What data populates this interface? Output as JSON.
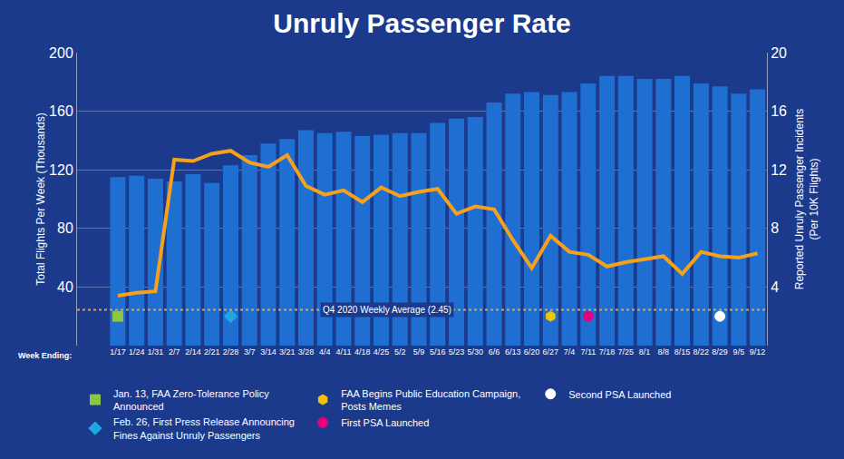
{
  "chart_data": {
    "type": "bar",
    "title": "Unruly Passenger Rate",
    "xlabel": "Week Ending:",
    "categories": [
      "1/17",
      "1/24",
      "1/31",
      "2/7",
      "2/14",
      "2/21",
      "2/28",
      "3/7",
      "3/14",
      "3/21",
      "3/28",
      "4/4",
      "4/11",
      "4/18",
      "4/25",
      "5/2",
      "5/9",
      "5/16",
      "5/23",
      "5/30",
      "6/6",
      "6/13",
      "6/20",
      "6/27",
      "7/4",
      "7/11",
      "7/18",
      "7/25",
      "8/1",
      "8/8",
      "8/15",
      "8/22",
      "8/29",
      "9/5",
      "9/12"
    ],
    "series": [
      {
        "name": "Total Flights Per Week (Thousands)",
        "type": "bar",
        "color": "#1f6fd3",
        "values": [
          115,
          116,
          114,
          112,
          117,
          111,
          123,
          130,
          138,
          141,
          147,
          145,
          146,
          143,
          144,
          145,
          145,
          152,
          155,
          156,
          166,
          172,
          173,
          171,
          173,
          179,
          184,
          184,
          182,
          182,
          184,
          179,
          177,
          172,
          175
        ]
      },
      {
        "name": "Reported Unruly Passenger Incidents (Per 10K Flights)",
        "type": "line",
        "axis": "y2",
        "color": "#f7a11a",
        "line_style": "solid",
        "values": [
          3.4,
          3.6,
          3.7,
          12.7,
          12.6,
          13.1,
          13.3,
          12.5,
          12.2,
          13.0,
          10.9,
          10.3,
          10.6,
          9.8,
          10.8,
          10.2,
          10.5,
          10.7,
          9.0,
          9.5,
          9.3,
          7.2,
          5.3,
          7.5,
          6.4,
          6.2,
          5.4,
          5.7,
          5.9,
          6.1,
          4.9,
          6.4,
          6.1,
          6.0,
          6.3
        ]
      }
    ],
    "ylim": [
      0,
      200
    ],
    "yticks": [
      40,
      80,
      120,
      160,
      200
    ],
    "y2lim": [
      0,
      20
    ],
    "y2ticks": [
      4,
      8,
      12,
      16,
      20
    ],
    "grid": true,
    "legend": "bottom",
    "reference_line": {
      "label": "Q4 2020 Weekly Average (2.45)",
      "value": 2.45,
      "axis": "y2",
      "color": "#f7a11a",
      "line_style": "dotted"
    },
    "events": [
      {
        "label": "Jan. 13, FAA Zero-Tolerance Policy Announced",
        "week": "1/17",
        "color": "#8dc63f",
        "marker": "square"
      },
      {
        "label": "Feb. 26, First Press Release Announcing Fines Against Unruly Passengers",
        "week": "2/28",
        "color": "#1ea7e1",
        "marker": "diamond"
      },
      {
        "label": "FAA Begins Public Education Campaign, Posts Memes",
        "week": "6/27",
        "color": "#f5c400",
        "marker": "hexagon"
      },
      {
        "label": "First PSA Launched",
        "week": "7/11",
        "color": "#e6007e",
        "marker": "circle"
      },
      {
        "label": "Second PSA Launched",
        "week": "8/29",
        "color": "#ffffff",
        "marker": "circle"
      }
    ]
  }
}
